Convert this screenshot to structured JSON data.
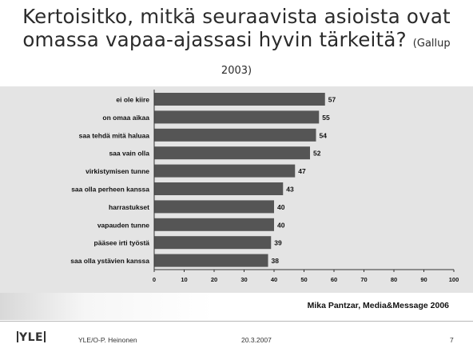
{
  "slide": {
    "title_main": "Kertoisitko, mitkä seuraavista asioista ovat omassa vapaa-ajassasi hyvin tärkeitä?",
    "title_source": "(Gallup 2003)",
    "credit": "Mika Pantzar, Media&Message 2006"
  },
  "footer": {
    "logo": "YLE",
    "author": "YLE/O-P. Heinonen",
    "date": "20.3.2007",
    "page_number": "7"
  },
  "colors": {
    "bar": "#555555",
    "chart_bg": "#e4e4e4"
  },
  "chart_data": {
    "type": "bar",
    "orientation": "horizontal",
    "categories": [
      "ei ole kiire",
      "on omaa aikaa",
      "saa tehdä mitä haluaa",
      "saa vain olla",
      "virkistymisen tunne",
      "saa olla perheen kanssa",
      "harrastukset",
      "vapauden tunne",
      "pääsee irti työstä",
      "saa olla ystävien kanssa"
    ],
    "values": [
      57,
      55,
      54,
      52,
      47,
      43,
      40,
      40,
      39,
      38
    ],
    "xlim": [
      0,
      100
    ],
    "xticks": [
      0,
      10,
      20,
      30,
      40,
      50,
      60,
      70,
      80,
      90,
      100
    ],
    "grid": false,
    "data_labels": true
  }
}
